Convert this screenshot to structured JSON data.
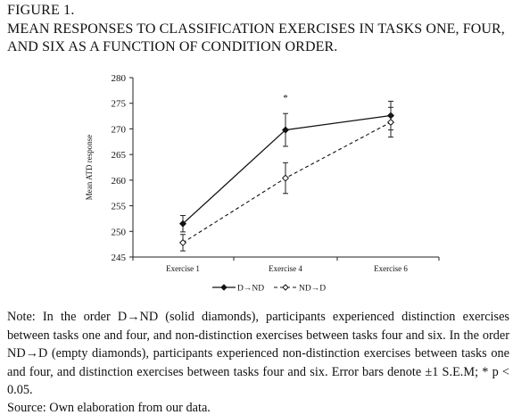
{
  "figure": {
    "label": "FIGURE 1.",
    "title": "MEAN RESPONSES TO CLASSIFICATION EXERCISES IN TASKS ONE, FOUR, AND SIX AS A FUNCTION OF CONDITION ORDER."
  },
  "note": "Note: In the order D→ND (solid diamonds), participants experienced distinction exercises between tasks one and four, and non-distinction exercises between tasks four and six. In the order ND→D (empty diamonds), participants experienced non-distinction exercises between tasks one and four, and distinction exercises between tasks four and six. Error bars denote ±1 S.E.M; * p < 0.05.",
  "source": "Source: Own elaboration from our data.",
  "chart_data": {
    "type": "line",
    "title": "",
    "xlabel": "",
    "ylabel": "Mean ATD response",
    "categories": [
      "Exercise 1",
      "Exercise 4",
      "Exercise 6"
    ],
    "ylim": [
      245,
      280
    ],
    "yticks": [
      245,
      250,
      255,
      260,
      265,
      270,
      275,
      280
    ],
    "grid": false,
    "legend_position": "bottom-center",
    "series": [
      {
        "name": "D→ND",
        "marker": "filled-diamond",
        "line_style": "solid",
        "values": [
          251.5,
          269.8,
          272.6
        ],
        "errors": [
          1.6,
          3.2,
          2.8
        ]
      },
      {
        "name": "ND→D",
        "marker": "open-diamond",
        "line_style": "dashed",
        "values": [
          247.8,
          260.4,
          271.3
        ],
        "errors": [
          1.6,
          3.0,
          2.9
        ]
      }
    ],
    "annotations": [
      {
        "text": "*",
        "category": "Exercise 4",
        "y": 276.2
      }
    ]
  }
}
